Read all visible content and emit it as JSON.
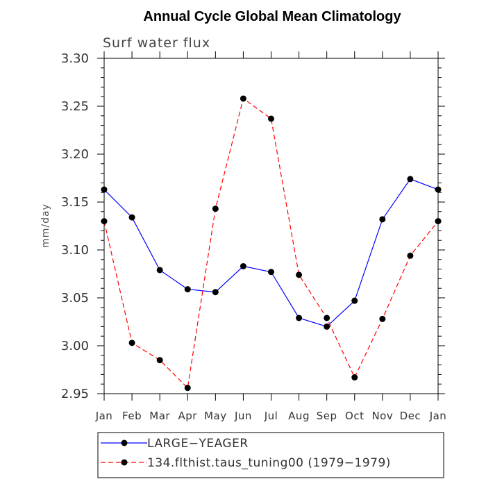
{
  "chart_data": {
    "type": "line",
    "title": "Annual Cycle Global Mean Climatology",
    "subtitle": "Surf water flux",
    "xlabel": "",
    "ylabel": "mm/day",
    "categories": [
      "Jan",
      "Feb",
      "Mar",
      "Apr",
      "May",
      "Jun",
      "Jul",
      "Aug",
      "Sep",
      "Oct",
      "Nov",
      "Dec",
      "Jan"
    ],
    "ylim": [
      2.95,
      3.3
    ],
    "yticks": [
      "2.95",
      "3.00",
      "3.05",
      "3.10",
      "3.15",
      "3.20",
      "3.25",
      "3.30"
    ],
    "grid": false,
    "legend_position": "bottom-left",
    "series": [
      {
        "name": "LARGE−YEAGER",
        "color": "#0000ff",
        "dash": "solid",
        "marker": "filled-circle",
        "values": [
          3.163,
          3.134,
          3.079,
          3.059,
          3.056,
          3.083,
          3.077,
          3.029,
          3.02,
          3.047,
          3.132,
          3.174,
          3.163
        ]
      },
      {
        "name": "134.flthist.taus_tuning00 (1979−1979)",
        "color": "#ff0000",
        "dash": "dashed",
        "marker": "filled-circle",
        "values": [
          3.13,
          3.003,
          2.985,
          2.956,
          3.143,
          3.258,
          3.237,
          3.074,
          3.029,
          2.967,
          3.028,
          3.094,
          3.13
        ]
      }
    ]
  }
}
